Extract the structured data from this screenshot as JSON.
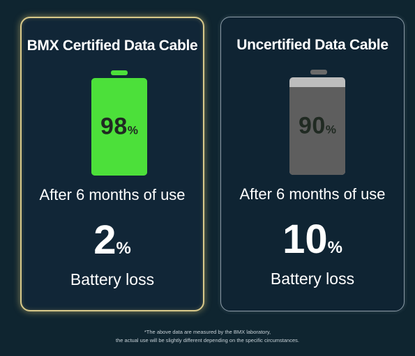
{
  "colors": {
    "background": "#0f2530",
    "certified_border": "#d8c98a",
    "uncertified_border": "#8a9aa6",
    "certified_battery": "#4ce03a",
    "uncertified_battery_fill": "#5e5e5e",
    "uncertified_battery_empty": "#bdbdbd"
  },
  "cards": [
    {
      "title": "BMX Certified Data Cable",
      "battery_percent": 98,
      "battery_value": "98",
      "battery_unit": "%",
      "after_label": "After 6 months of use",
      "loss_value": "2",
      "loss_unit": "%",
      "loss_label": "Battery loss"
    },
    {
      "title": "Uncertified Data Cable",
      "battery_percent": 90,
      "battery_value": "90",
      "battery_unit": "%",
      "after_label": "After 6 months of use",
      "loss_value": "10",
      "loss_unit": "%",
      "loss_label": "Battery loss"
    }
  ],
  "footnote": {
    "line1": "*The above data are measured by the BMX laboratory,",
    "line2": "the actual use will be slightly different depending on the specific circumstances."
  }
}
